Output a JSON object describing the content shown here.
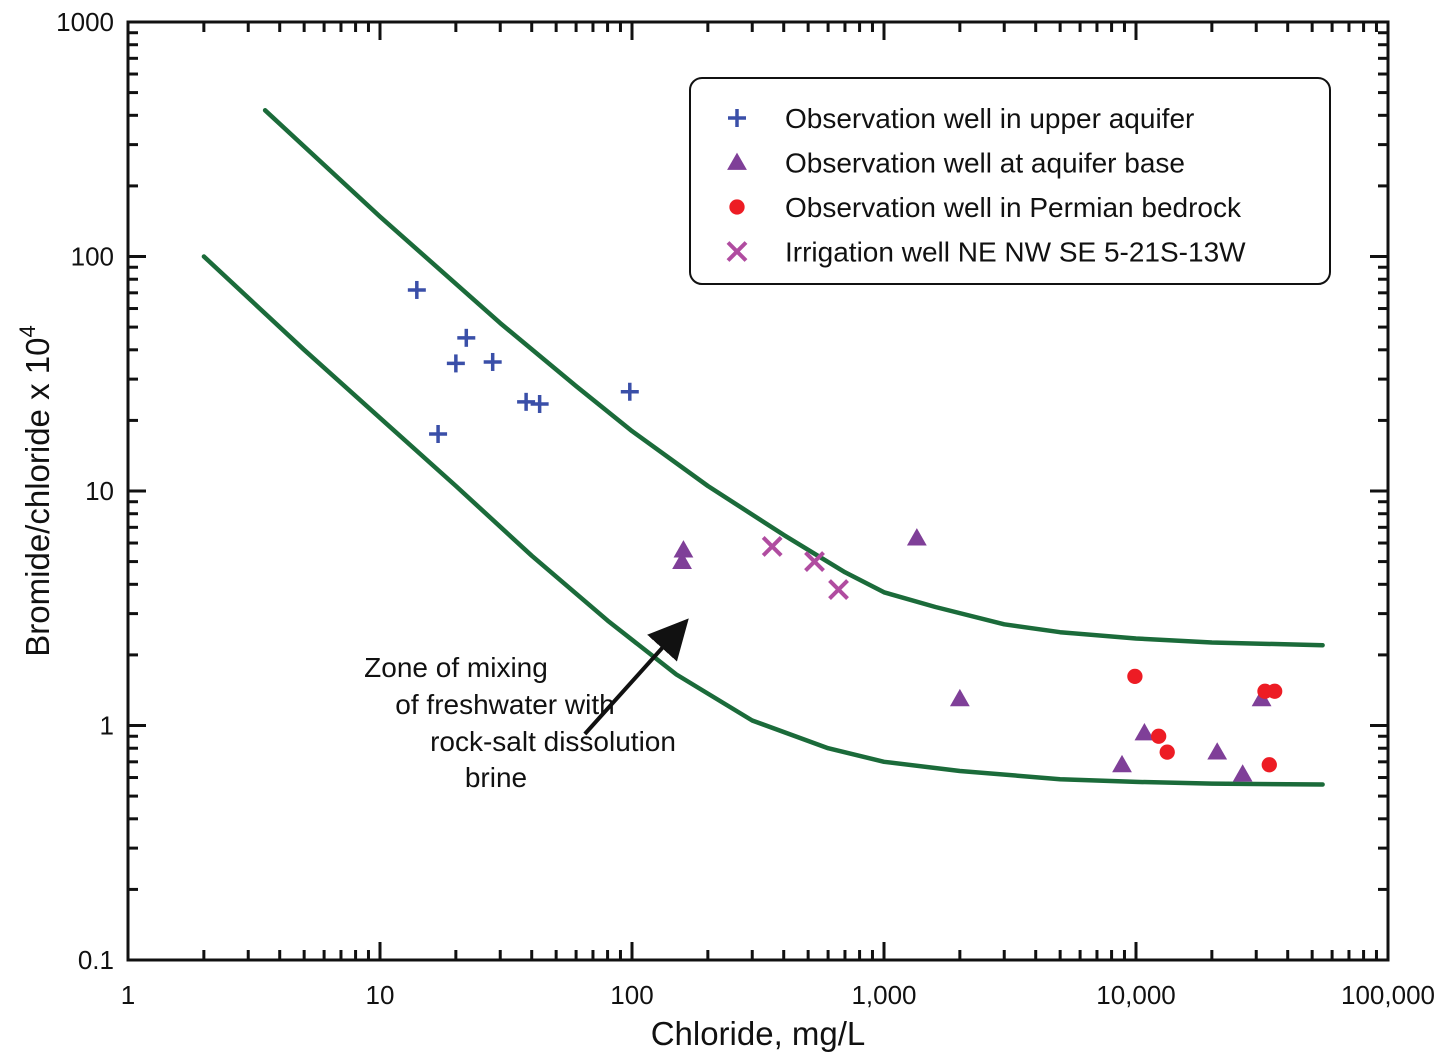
{
  "chart_data": {
    "type": "scatter",
    "title": "",
    "xlabel": "Chloride, mg/L",
    "ylabel_main": "Bromide/chloride x 10",
    "ylabel_exponent": "4",
    "x_scale": "log",
    "y_scale": "log",
    "xlim": [
      1,
      100000
    ],
    "ylim": [
      0.1,
      1000
    ],
    "grid": false,
    "legend_position": "top-right",
    "x_ticks": [
      {
        "value": 1,
        "label": "1"
      },
      {
        "value": 10,
        "label": "10"
      },
      {
        "value": 100,
        "label": "100"
      },
      {
        "value": 1000,
        "label": "1,000"
      },
      {
        "value": 10000,
        "label": "10,000"
      },
      {
        "value": 100000,
        "label": "100,000"
      }
    ],
    "y_ticks": [
      {
        "value": 0.1,
        "label": "0.1"
      },
      {
        "value": 1,
        "label": "1"
      },
      {
        "value": 10,
        "label": "10"
      },
      {
        "value": 100,
        "label": "100"
      },
      {
        "value": 1000,
        "label": "1000"
      }
    ],
    "series": [
      {
        "name": "Observation well in upper aquifer",
        "marker": "plus",
        "color": "#3a4fa8",
        "points": [
          [
            14,
            72
          ],
          [
            17,
            17.5
          ],
          [
            20,
            35
          ],
          [
            22,
            45
          ],
          [
            28,
            35.5
          ],
          [
            38,
            24
          ],
          [
            43,
            23.5
          ],
          [
            98,
            26.5
          ]
        ]
      },
      {
        "name": "Observation well at aquifer base",
        "marker": "triangle",
        "color": "#7f3f98",
        "points": [
          [
            160,
            5.6
          ],
          [
            158,
            5.0
          ],
          [
            1350,
            6.3
          ],
          [
            2000,
            1.3
          ],
          [
            8800,
            0.68
          ],
          [
            10800,
            0.93
          ],
          [
            21000,
            0.77
          ],
          [
            26500,
            0.62
          ],
          [
            31500,
            1.3
          ]
        ]
      },
      {
        "name": "Observation well in Permian bedrock",
        "marker": "circle",
        "color": "#ed1c24",
        "points": [
          [
            9900,
            1.62
          ],
          [
            12300,
            0.9
          ],
          [
            13300,
            0.77
          ],
          [
            32500,
            1.4
          ],
          [
            35500,
            1.4
          ],
          [
            33800,
            0.68
          ]
        ]
      },
      {
        "name": "Irrigation well NE NW SE 5-21S-13W",
        "marker": "x",
        "color": "#b04ca0",
        "points": [
          [
            360,
            5.8
          ],
          [
            530,
            5.0
          ],
          [
            660,
            3.8
          ]
        ]
      }
    ],
    "curves": [
      {
        "color": "#1b6b3a",
        "points": [
          [
            3.5,
            420
          ],
          [
            10,
            148
          ],
          [
            30,
            52
          ],
          [
            60,
            28
          ],
          [
            100,
            18
          ],
          [
            200,
            10.5
          ],
          [
            400,
            6.5
          ],
          [
            700,
            4.5
          ],
          [
            1000,
            3.7
          ],
          [
            1600,
            3.2
          ],
          [
            3000,
            2.7
          ],
          [
            5000,
            2.5
          ],
          [
            10000,
            2.35
          ],
          [
            20000,
            2.26
          ],
          [
            55000,
            2.2
          ]
        ]
      },
      {
        "color": "#1b6b3a",
        "points": [
          [
            2,
            100
          ],
          [
            5,
            40
          ],
          [
            10,
            20.5
          ],
          [
            20,
            10.5
          ],
          [
            40,
            5.3
          ],
          [
            80,
            2.8
          ],
          [
            150,
            1.65
          ],
          [
            300,
            1.05
          ],
          [
            600,
            0.8
          ],
          [
            1000,
            0.7
          ],
          [
            2000,
            0.64
          ],
          [
            5000,
            0.59
          ],
          [
            10000,
            0.575
          ],
          [
            20000,
            0.565
          ],
          [
            55000,
            0.56
          ]
        ]
      }
    ],
    "annotation": {
      "lines": [
        "Zone of mixing",
        "of freshwater with",
        "rock-salt dissolution",
        "brine"
      ],
      "arrow_from": [
        65,
        0.92
      ],
      "arrow_to": [
        160,
        2.7
      ]
    }
  }
}
